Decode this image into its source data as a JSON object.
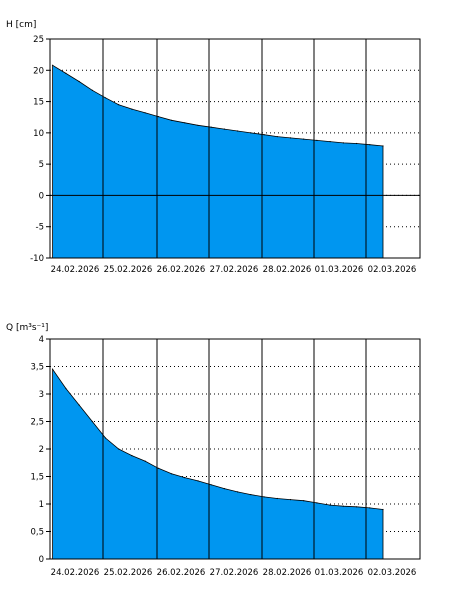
{
  "chart_data": [
    {
      "type": "area",
      "ylabel": "H [cm]",
      "xlabel": "",
      "ylim": [
        -10,
        25
      ],
      "yticks": [
        "25",
        "20",
        "15",
        "10",
        "5",
        "0",
        "-5",
        "-10"
      ],
      "xticks": [
        "24.02.2026",
        "25.02.2026",
        "26.02.2026",
        "27.02.2026",
        "28.02.2026",
        "01.03.2026",
        "02.03.2026"
      ],
      "xrange_days": [
        -0.05,
        6.95
      ],
      "zero_line": 0,
      "fill_color": "#0096f0",
      "grid": "dotted",
      "x": [
        0.0,
        0.25,
        0.5,
        0.75,
        1.0,
        1.25,
        1.5,
        1.75,
        2.0,
        2.25,
        2.5,
        2.75,
        3.0,
        3.25,
        3.5,
        3.75,
        4.0,
        4.25,
        4.5,
        4.75,
        5.0,
        5.25,
        5.5,
        5.75,
        6.0,
        6.25
      ],
      "values": [
        20.8,
        19.5,
        18.2,
        16.8,
        15.6,
        14.5,
        13.8,
        13.2,
        12.6,
        12.0,
        11.6,
        11.2,
        10.9,
        10.6,
        10.3,
        10.0,
        9.7,
        9.4,
        9.2,
        9.0,
        8.8,
        8.6,
        8.4,
        8.3,
        8.1,
        7.9
      ]
    },
    {
      "type": "area",
      "ylabel": "Q [m³s⁻¹]",
      "xlabel": "",
      "ylim": [
        0,
        4
      ],
      "yticks": [
        "4",
        "3,5",
        "3",
        "2,5",
        "2",
        "1,5",
        "1",
        "0,5",
        "0"
      ],
      "xticks": [
        "24.02.2026",
        "25.02.2026",
        "26.02.2026",
        "27.02.2026",
        "28.02.2026",
        "01.03.2026",
        "02.03.2026"
      ],
      "xrange_days": [
        -0.05,
        6.95
      ],
      "fill_color": "#0096f0",
      "grid": "dotted",
      "x": [
        0.0,
        0.25,
        0.5,
        0.75,
        1.0,
        1.25,
        1.5,
        1.75,
        2.0,
        2.25,
        2.5,
        2.75,
        3.0,
        3.25,
        3.5,
        3.75,
        4.0,
        4.25,
        4.5,
        4.75,
        5.0,
        5.25,
        5.5,
        5.75,
        6.0,
        6.25
      ],
      "values": [
        3.45,
        3.1,
        2.8,
        2.5,
        2.2,
        2.0,
        1.88,
        1.78,
        1.65,
        1.55,
        1.48,
        1.42,
        1.35,
        1.28,
        1.22,
        1.17,
        1.13,
        1.1,
        1.08,
        1.06,
        1.02,
        0.98,
        0.96,
        0.95,
        0.93,
        0.9
      ]
    }
  ]
}
